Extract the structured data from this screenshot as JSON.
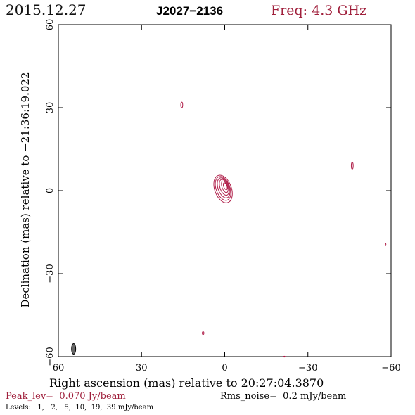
{
  "header": {
    "date": "2015.12.27",
    "source": "J2027−2136",
    "freq": "Freq: 4.3 GHz"
  },
  "colors": {
    "contour": "#b0204a",
    "accent_text": "#a0203c",
    "frame": "#000000",
    "beam_fill": "#666666"
  },
  "chart_data": {
    "type": "contour",
    "xlabel": "Right ascension (mas) relative to 20:27:04.3870",
    "ylabel": "Declination (mas) relative to −21:36:19.022",
    "xlim": [
      60,
      -60
    ],
    "ylim": [
      -60,
      60
    ],
    "x_ticks": [
      60,
      30,
      0,
      -30,
      -60
    ],
    "y_ticks": [
      60,
      30,
      0,
      -30,
      -60
    ],
    "x_tick_labels": [
      "60",
      "30",
      "0",
      "−30",
      "−60"
    ],
    "y_tick_labels": [
      "60",
      "30",
      "0",
      "−30",
      "−60"
    ],
    "peak_label": "Peak_lev=  0.070 Jy/beam",
    "rms_label": "Rms_noise=  0.2 mJy/beam",
    "levels_label": "Levels:   1,   2,   5,  10,  19,  39 mJy/beam",
    "levels_mjy": [
      1,
      2,
      5,
      10,
      19,
      39
    ],
    "core_contours": [
      {
        "level": 1,
        "cx": 0.6,
        "cy": 0.6,
        "rx": 3.0,
        "ry": 5.2,
        "angle": -20
      },
      {
        "level": 2,
        "cx": 0.6,
        "cy": 0.8,
        "rx": 2.5,
        "ry": 4.5,
        "angle": -20
      },
      {
        "level": 5,
        "cx": 0.4,
        "cy": 1.0,
        "rx": 2.0,
        "ry": 3.8,
        "angle": -20
      },
      {
        "level": 10,
        "cx": 0.2,
        "cy": 1.2,
        "rx": 1.5,
        "ry": 3.0,
        "angle": -20
      },
      {
        "level": 19,
        "cx": 0.0,
        "cy": 1.4,
        "rx": 1.0,
        "ry": 2.2,
        "angle": -20
      },
      {
        "level": 39,
        "cx": -0.2,
        "cy": 1.6,
        "rx": 0.6,
        "ry": 1.3,
        "angle": -20
      }
    ],
    "noise_contours": [
      {
        "cx": 15.5,
        "cy": 31.0,
        "rx": 0.35,
        "ry": 1.0
      },
      {
        "cx": -46.0,
        "cy": 9.0,
        "rx": 0.35,
        "ry": 1.2
      },
      {
        "cx": -58.0,
        "cy": -19.5,
        "rx": 0.15,
        "ry": 0.4
      },
      {
        "cx": 7.8,
        "cy": -51.5,
        "rx": 0.3,
        "ry": 0.5
      },
      {
        "cx": -21.5,
        "cy": -60.0,
        "rx": 0.3,
        "ry": 0.15
      }
    ],
    "beam": {
      "cx": 54.5,
      "cy": -57.2,
      "rx": 0.75,
      "ry": 1.9,
      "angle": 0
    }
  }
}
